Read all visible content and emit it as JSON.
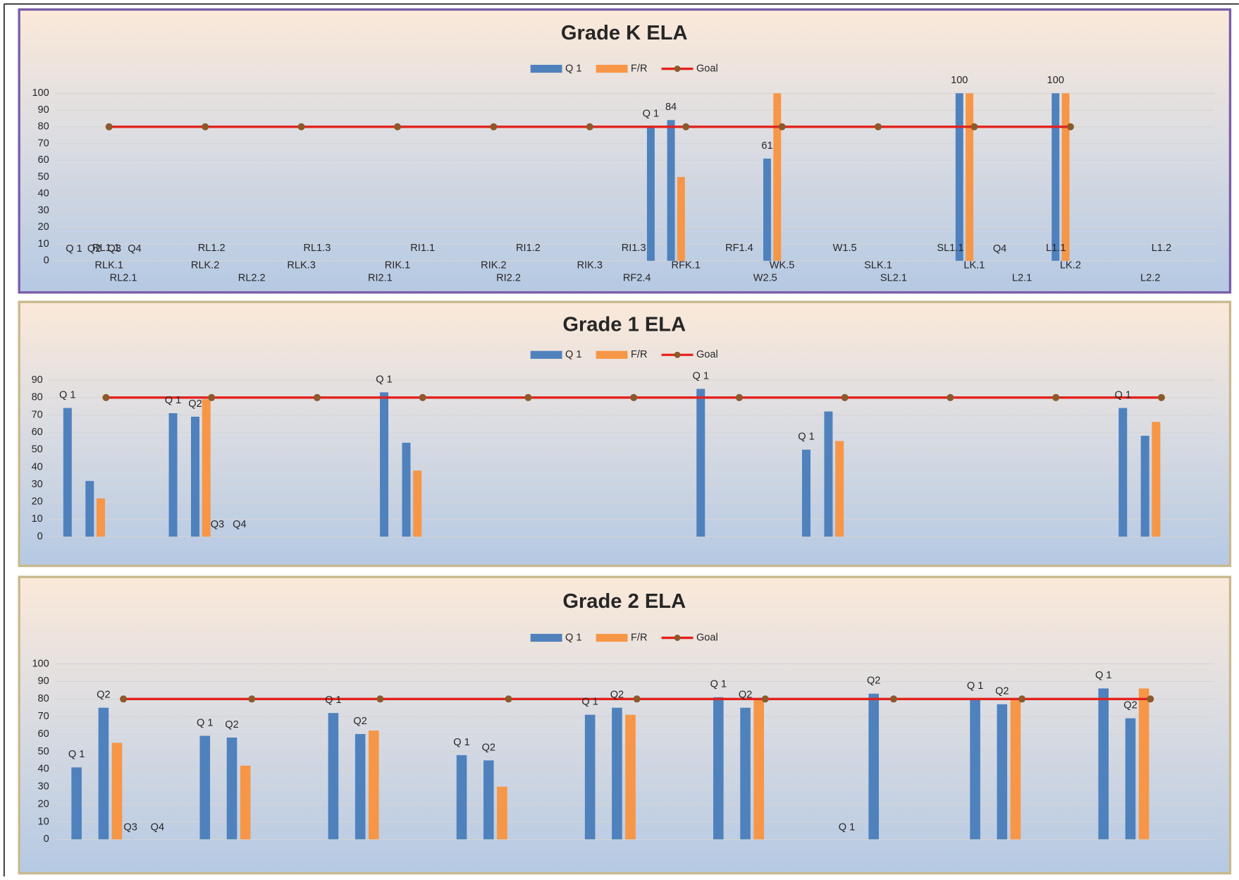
{
  "chart_data": [
    {
      "type": "bar",
      "title": "Grade K ELA",
      "categories": [
        "RLK.1",
        "RLK.2",
        "RLK.3",
        "RIK.1",
        "RIK.2",
        "RIK.3",
        "RFK.1",
        "WK.5",
        "SLK.1",
        "LK.1",
        "LK.2"
      ],
      "ylim": [
        0,
        100
      ],
      "yticks": [
        0,
        10,
        20,
        30,
        40,
        50,
        60,
        70,
        80,
        90,
        100
      ],
      "grid": true,
      "series": [
        {
          "name": "Q 1",
          "color": "#4f81bd",
          "values": [
            [
              null,
              null,
              null,
              null
            ],
            [
              null,
              null,
              null,
              null
            ],
            [
              null,
              null,
              null,
              null
            ],
            [
              null,
              null,
              null,
              null
            ],
            [
              null,
              null,
              null,
              null
            ],
            [
              null,
              null,
              null,
              null
            ],
            [
              80,
              84,
              null,
              null
            ],
            [
              null,
              61,
              null,
              null
            ],
            [
              null,
              null,
              null,
              null
            ],
            [
              null,
              100,
              null,
              null
            ],
            [
              null,
              100,
              null,
              null
            ]
          ],
          "value_labels": [
            [
              null,
              null,
              null,
              null
            ],
            [
              null,
              null,
              null,
              null
            ],
            [
              null,
              null,
              null,
              null
            ],
            [
              null,
              null,
              null,
              null
            ],
            [
              null,
              null,
              null,
              null
            ],
            [
              null,
              null,
              null,
              null
            ],
            [
              null,
              "84",
              null,
              null
            ],
            [
              null,
              "61",
              null,
              null
            ],
            [
              null,
              null,
              null,
              null
            ],
            [
              null,
              "100",
              null,
              null
            ],
            [
              null,
              "100",
              null,
              null
            ]
          ]
        },
        {
          "name": "F/R",
          "color": "#f79646",
          "values": [
            [
              null,
              null,
              null,
              null
            ],
            [
              null,
              null,
              null,
              null
            ],
            [
              null,
              null,
              null,
              null
            ],
            [
              null,
              null,
              null,
              null
            ],
            [
              null,
              null,
              null,
              null
            ],
            [
              null,
              null,
              null,
              null
            ],
            [
              null,
              50,
              null,
              null
            ],
            [
              null,
              100,
              null,
              null
            ],
            [
              null,
              null,
              null,
              null
            ],
            [
              null,
              100,
              null,
              null
            ],
            [
              null,
              100,
              null,
              null
            ]
          ]
        },
        {
          "name": "Goal",
          "type": "line",
          "color": "#e3211c",
          "marker_color": "#8b5a2b",
          "values": [
            80,
            80,
            80,
            80,
            80,
            80,
            80,
            80,
            80,
            80,
            80
          ]
        }
      ],
      "quarter_labels": [
        [
          "Q 1",
          "Q2",
          "Q3",
          "Q4"
        ],
        [
          null,
          null,
          null,
          null
        ],
        [
          null,
          null,
          null,
          null
        ],
        [
          null,
          null,
          null,
          null
        ],
        [
          null,
          null,
          null,
          null
        ],
        [
          null,
          null,
          null,
          null
        ],
        [
          "Q 1",
          null,
          null,
          null
        ],
        [
          null,
          null,
          null,
          null
        ],
        [
          null,
          null,
          null,
          null
        ],
        [
          null,
          null,
          null,
          "Q4"
        ],
        [
          null,
          null,
          null,
          null
        ]
      ]
    },
    {
      "type": "bar",
      "title": "Grade 1 ELA",
      "categories": [
        "RL1.1",
        "RL1.2",
        "RL1.3",
        "RI1.1",
        "RI1.2",
        "RI1.3",
        "RF1.4",
        "W1.5",
        "SL1.1",
        "L1.1",
        "L1.2"
      ],
      "ylim": [
        0,
        90
      ],
      "yticks": [
        0,
        10,
        20,
        30,
        40,
        50,
        60,
        70,
        80,
        90
      ],
      "grid": true,
      "series": [
        {
          "name": "Q 1",
          "color": "#4f81bd",
          "values": [
            [
              74,
              32,
              null,
              null
            ],
            [
              71,
              69,
              null,
              null
            ],
            [
              null,
              null,
              null,
              null
            ],
            [
              83,
              54,
              null,
              null
            ],
            [
              null,
              null,
              null,
              null
            ],
            [
              null,
              null,
              null,
              null
            ],
            [
              85,
              null,
              null,
              null
            ],
            [
              50,
              72,
              null,
              null
            ],
            [
              null,
              null,
              null,
              null
            ],
            [
              null,
              null,
              null,
              null
            ],
            [
              74,
              58,
              null,
              null
            ]
          ]
        },
        {
          "name": "F/R",
          "color": "#f79646",
          "values": [
            [
              null,
              22,
              null,
              null
            ],
            [
              null,
              79,
              null,
              null
            ],
            [
              null,
              null,
              null,
              null
            ],
            [
              null,
              38,
              null,
              null
            ],
            [
              null,
              null,
              null,
              null
            ],
            [
              null,
              null,
              null,
              null
            ],
            [
              null,
              null,
              null,
              null
            ],
            [
              null,
              55,
              null,
              null
            ],
            [
              null,
              null,
              null,
              null
            ],
            [
              null,
              null,
              null,
              null
            ],
            [
              null,
              66,
              null,
              null
            ]
          ]
        },
        {
          "name": "Goal",
          "type": "line",
          "color": "#e3211c",
          "marker_color": "#8b5a2b",
          "values": [
            80,
            80,
            80,
            80,
            80,
            80,
            80,
            80,
            80,
            80,
            80
          ]
        }
      ],
      "quarter_labels": [
        [
          "Q 1",
          null,
          null,
          null
        ],
        [
          "Q 1",
          "Q2",
          "Q3",
          "Q4"
        ],
        [
          null,
          null,
          null,
          null
        ],
        [
          "Q 1",
          null,
          null,
          null
        ],
        [
          null,
          null,
          null,
          null
        ],
        [
          null,
          null,
          null,
          null
        ],
        [
          "Q 1",
          null,
          null,
          null
        ],
        [
          "Q 1",
          null,
          null,
          null
        ],
        [
          null,
          null,
          null,
          null
        ],
        [
          null,
          null,
          null,
          null
        ],
        [
          "Q 1",
          null,
          null,
          null
        ]
      ]
    },
    {
      "type": "bar",
      "title": "Grade 2 ELA",
      "categories": [
        "RL2.1",
        "RL2.2",
        "RI2.1",
        "RI2.2",
        "RF2.4",
        "W2.5",
        "SL2.1",
        "L2.1",
        "L2.2"
      ],
      "ylim": [
        0,
        100
      ],
      "yticks": [
        0,
        10,
        20,
        30,
        40,
        50,
        60,
        70,
        80,
        90,
        100
      ],
      "grid": true,
      "series": [
        {
          "name": "Q 1",
          "color": "#4f81bd",
          "values": [
            [
              41,
              75,
              null,
              null
            ],
            [
              59,
              58,
              null,
              null
            ],
            [
              72,
              60,
              null,
              null
            ],
            [
              48,
              45,
              null,
              null
            ],
            [
              71,
              75,
              null,
              null
            ],
            [
              81,
              75,
              null,
              null
            ],
            [
              null,
              83,
              null,
              null
            ],
            [
              80,
              77,
              null,
              null
            ],
            [
              86,
              69,
              null,
              null
            ]
          ]
        },
        {
          "name": "F/R",
          "color": "#f79646",
          "values": [
            [
              null,
              55,
              null,
              null
            ],
            [
              null,
              42,
              null,
              null
            ],
            [
              null,
              62,
              null,
              null
            ],
            [
              null,
              30,
              null,
              null
            ],
            [
              null,
              71,
              null,
              null
            ],
            [
              null,
              80,
              null,
              null
            ],
            [
              null,
              null,
              null,
              null
            ],
            [
              null,
              80,
              null,
              null
            ],
            [
              null,
              86,
              null,
              null
            ]
          ]
        },
        {
          "name": "Goal",
          "type": "line",
          "color": "#e3211c",
          "marker_color": "#8b5a2b",
          "values": [
            80,
            80,
            80,
            80,
            80,
            80,
            80,
            80,
            80
          ]
        }
      ],
      "quarter_labels": [
        [
          "Q 1",
          "Q2",
          "Q3",
          "Q4"
        ],
        [
          "Q 1",
          "Q2",
          null,
          null
        ],
        [
          "Q 1",
          "Q2",
          null,
          null
        ],
        [
          "Q 1",
          "Q2",
          null,
          null
        ],
        [
          "Q 1",
          "Q2",
          null,
          null
        ],
        [
          "Q 1",
          "Q2",
          null,
          null
        ],
        [
          "Q 1",
          "Q2",
          null,
          null
        ],
        [
          "Q 1",
          "Q2",
          null,
          null
        ],
        [
          "Q 1",
          "Q2",
          null,
          null
        ]
      ]
    }
  ]
}
